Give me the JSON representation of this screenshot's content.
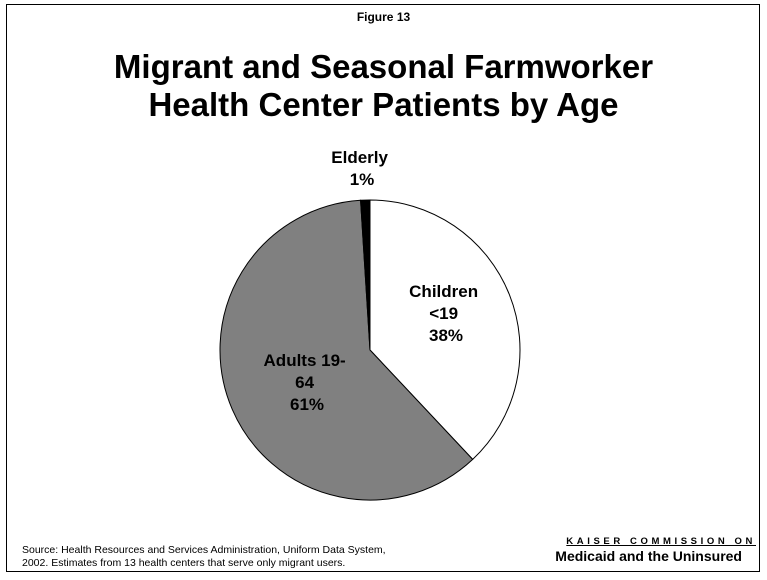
{
  "figure_label": "Figure 13",
  "chart_data": {
    "type": "pie",
    "title": "Migrant and Seasonal Farmworker Health Center Patients by Age",
    "title_lines": [
      "Migrant and Seasonal Farmworker",
      "Health Center Patients by Age"
    ],
    "slices": [
      {
        "name": "Children <19",
        "label_lines": [
          "Children",
          "<19"
        ],
        "value": 38,
        "pct_label": "38%",
        "color": "#ffffff"
      },
      {
        "name": "Adults 19-64",
        "label_lines": [
          "Adults 19-",
          "64"
        ],
        "value": 61,
        "pct_label": "61%",
        "color": "#808080"
      },
      {
        "name": "Elderly",
        "label_lines": [
          "Elderly"
        ],
        "value": 1,
        "pct_label": "1%",
        "color": "#000000"
      }
    ]
  },
  "source": {
    "line1": "Source: Health Resources and Services Administration, Uniform Data System,",
    "line2": "2002.  Estimates from 13 health centers that serve only migrant users."
  },
  "logo": {
    "top": "KAISER COMMISSION ON",
    "bottom": "Medicaid and the Uninsured"
  }
}
